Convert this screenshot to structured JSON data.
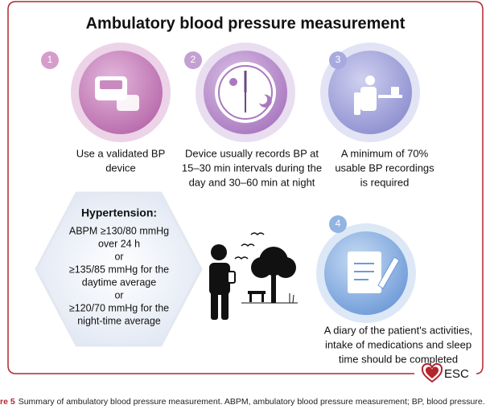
{
  "title": "Ambulatory blood pressure measurement",
  "steps": [
    {
      "number": "1",
      "lines": [
        "Use a validated BP",
        "device"
      ]
    },
    {
      "number": "2",
      "lines": [
        "Device usually records BP at",
        "15–30 min intervals during the",
        "day and 30–60 min at night"
      ]
    },
    {
      "number": "3",
      "lines": [
        "A minimum of 70%",
        "usable BP recordings",
        "is required"
      ]
    },
    {
      "number": "4",
      "lines": [
        "A diary of the patient's activities,",
        "intake of medications and sleep",
        "time should be completed"
      ]
    }
  ],
  "hypertension": {
    "heading": "Hypertension:",
    "lines": [
      "ABPM ≥130/80 mmHg",
      "over 24 h",
      "or",
      "≥135/85 mmHg for the",
      "daytime average",
      "or",
      "≥120/70 mmHg for the",
      "night-time average"
    ]
  },
  "logo": "ESC",
  "caption": {
    "label": "re 5",
    "text": "Summary of ambulatory blood pressure measurement. ABPM, ambulatory blood pressure measurement; BP, blood pressure."
  }
}
